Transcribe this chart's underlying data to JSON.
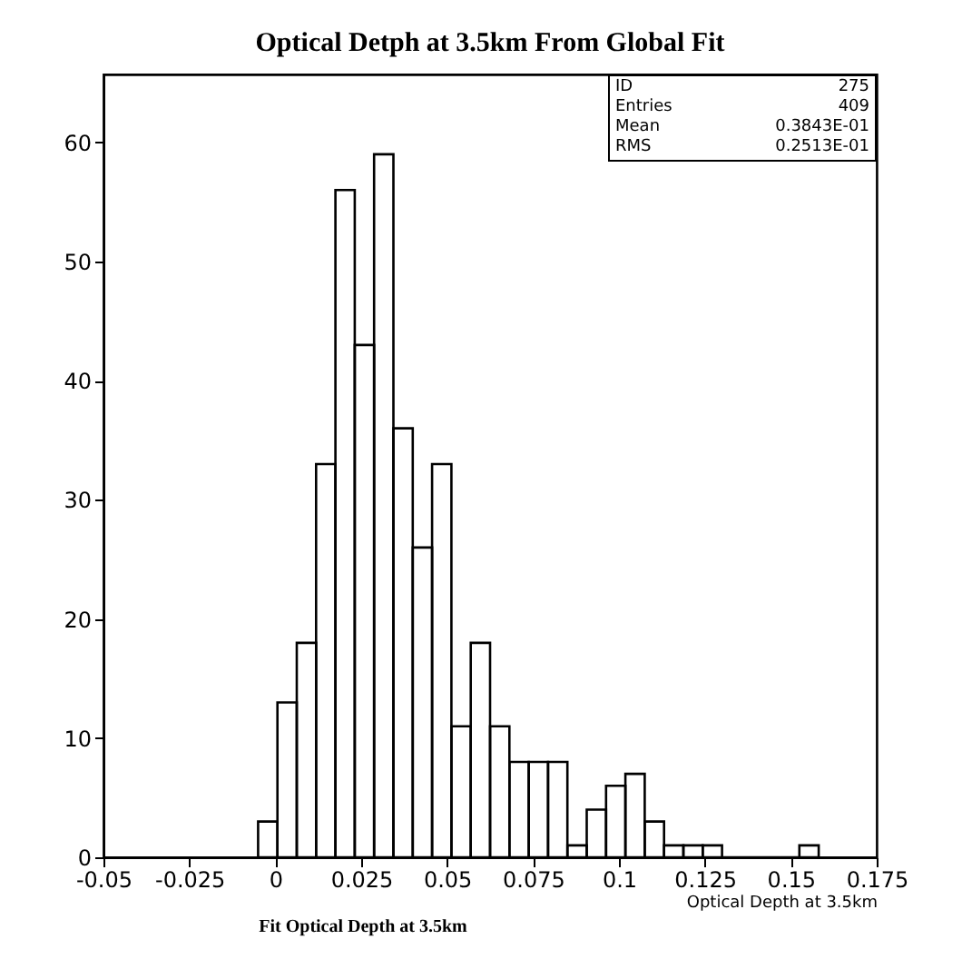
{
  "chart_data": {
    "type": "histogram",
    "title": "Optical Detph at 3.5km From Global Fit",
    "xlabel": "Optical Depth at 3.5km",
    "bins": [
      -0.005,
      0.000625,
      0.00625,
      0.011875,
      0.0175,
      0.023125,
      0.02875,
      0.034375,
      0.04,
      0.045625,
      0.05125,
      0.056875,
      0.0625,
      0.068125,
      0.07375,
      0.079375,
      0.085,
      0.090625,
      0.09625,
      0.101875,
      0.1075,
      0.113125,
      0.11875,
      0.124375,
      0.13,
      0.135625,
      0.14125,
      0.146875,
      0.1525,
      0.158125
    ],
    "values": [
      3,
      13,
      18,
      33,
      56,
      43,
      59,
      36,
      26,
      33,
      11,
      18,
      11,
      8,
      8,
      8,
      1,
      4,
      6,
      7,
      3,
      1,
      1,
      1,
      0,
      0,
      0,
      0,
      1
    ],
    "color": "#000000",
    "xlim": [
      -0.05,
      0.175
    ],
    "xticks": [
      -0.05,
      -0.025,
      0,
      0.025,
      0.05,
      0.075,
      0.1,
      0.125,
      0.15,
      0.175
    ],
    "ylim": [
      0,
      65.7
    ],
    "yticks": [
      0,
      10,
      20,
      30,
      40,
      50,
      60
    ],
    "annotations": [
      "ID 275",
      "Entries 409",
      "Mean 0.3843E-01",
      "RMS 0.2513E-01",
      "Fit Optical Depth at 3.5km"
    ]
  }
}
